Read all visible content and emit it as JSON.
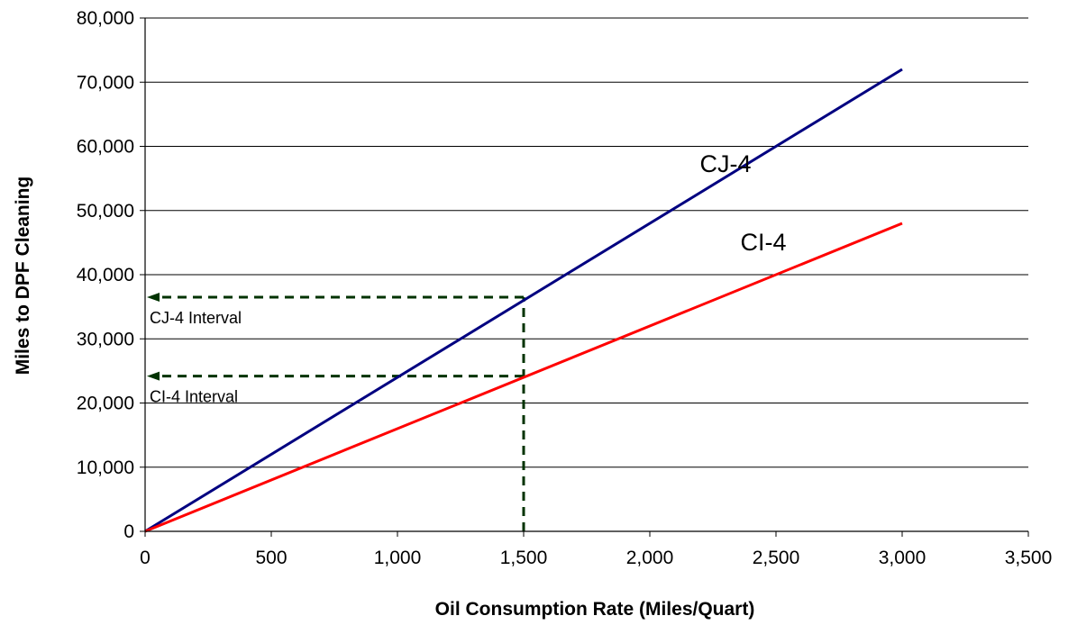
{
  "chart_data": {
    "type": "line",
    "xlabel": "Oil Consumption Rate (Miles/Quart)",
    "ylabel": "Miles to DPF Cleaning",
    "xlim": [
      0,
      3500
    ],
    "ylim": [
      0,
      80000
    ],
    "x_ticks": [
      0,
      500,
      1000,
      1500,
      2000,
      2500,
      3000,
      3500
    ],
    "y_ticks": [
      0,
      10000,
      20000,
      30000,
      40000,
      50000,
      60000,
      70000,
      80000
    ],
    "x_tick_labels": [
      "0",
      "500",
      "1,000",
      "1,500",
      "2,000",
      "2,500",
      "3,000",
      "3,500"
    ],
    "y_tick_labels": [
      "0",
      "10,000",
      "20,000",
      "30,000",
      "40,000",
      "50,000",
      "60,000",
      "70,000",
      "80,000"
    ],
    "grid": {
      "horizontal": true,
      "vertical": false
    },
    "legend": "none",
    "series": [
      {
        "name": "CJ-4",
        "color": "#000080",
        "x": [
          0,
          3000
        ],
        "y": [
          0,
          72000
        ],
        "label_at": [
          2300,
          56000
        ]
      },
      {
        "name": "CI-4",
        "color": "#ff0000",
        "x": [
          0,
          3000
        ],
        "y": [
          0,
          48000
        ],
        "label_at": [
          2450,
          43800
        ]
      }
    ],
    "annotations": [
      {
        "text": "CJ-4 Interval",
        "x_from": 1500,
        "y": 36500,
        "color": "#003300"
      },
      {
        "text": "CI-4 Interval",
        "x_from": 1500,
        "y": 24200,
        "color": "#003300"
      }
    ],
    "reference_line": {
      "x": 1500,
      "y_from": 0,
      "y_to": 36500,
      "color": "#003300"
    }
  }
}
